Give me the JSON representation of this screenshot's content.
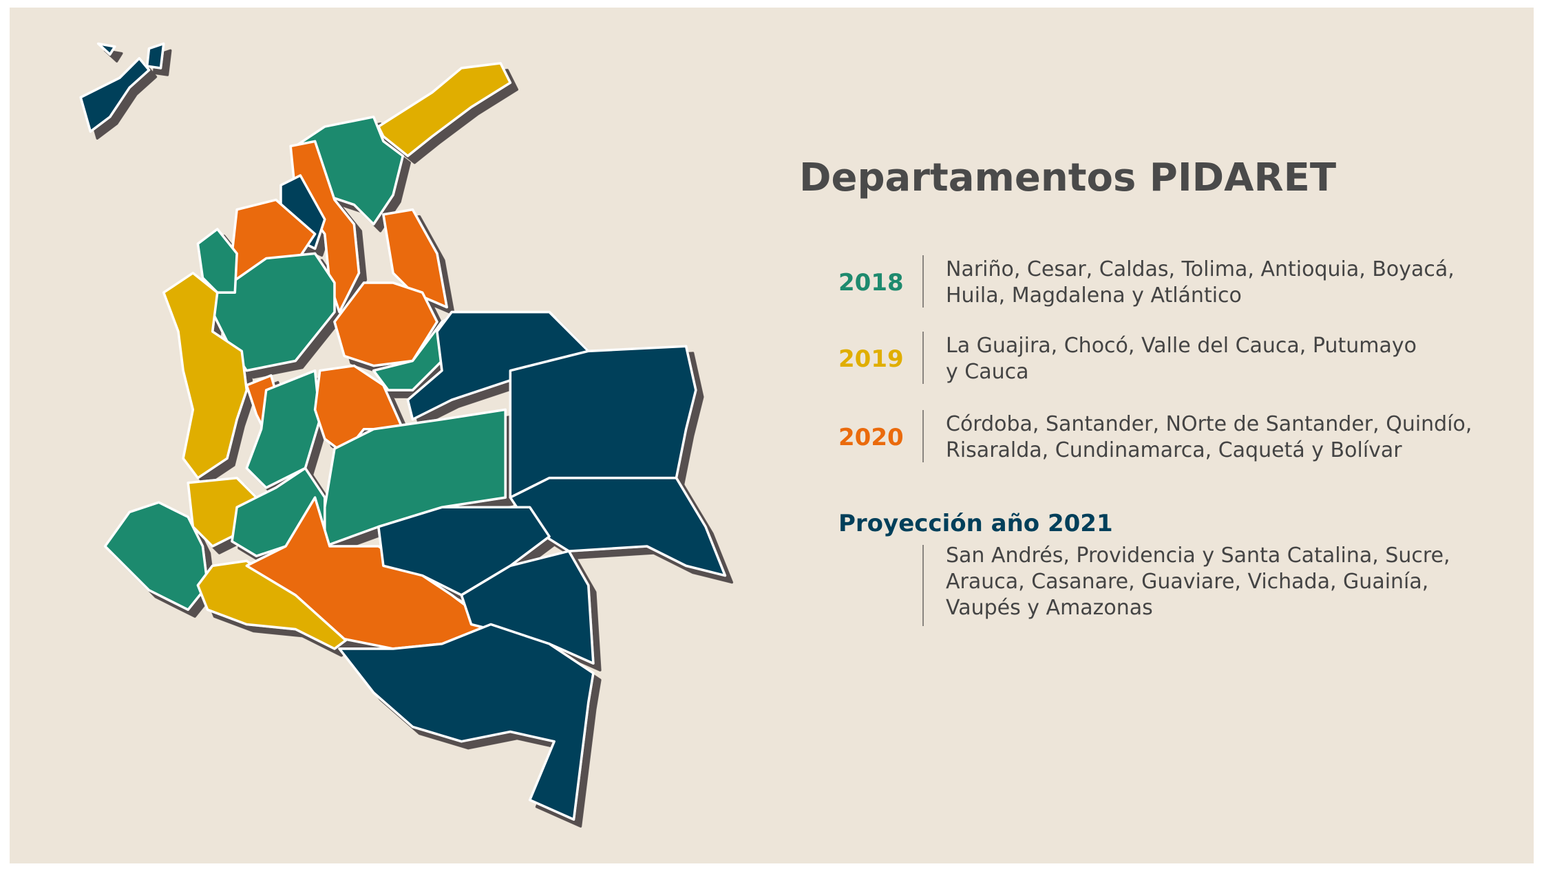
{
  "title": "Departamentos PIDARET",
  "groups": [
    {
      "label": "2018",
      "lines": [
        "Nariño, Cesar, Caldas, Tolima, Antioquia, Boyacá,",
        "Huila, Magdalena y Atlántico"
      ]
    },
    {
      "label": "2019",
      "lines": [
        "La Guajira, Chocó, Valle del Cauca, Putumayo",
        "y Cauca"
      ]
    },
    {
      "label": "2020",
      "lines": [
        "Córdoba, Santander, NOrte de Santander, Quindío,",
        "Risaralda, Cundinamarca, Caquetá y Bolívar"
      ]
    }
  ],
  "projection": {
    "label": "Proyección año 2021",
    "lines": [
      "San Andrés, Providencia y Santa Catalina, Sucre,",
      "Arauca, Casanare, Guaviare, Vichada, Guainía,",
      "Vaupés y Amazonas"
    ]
  }
}
